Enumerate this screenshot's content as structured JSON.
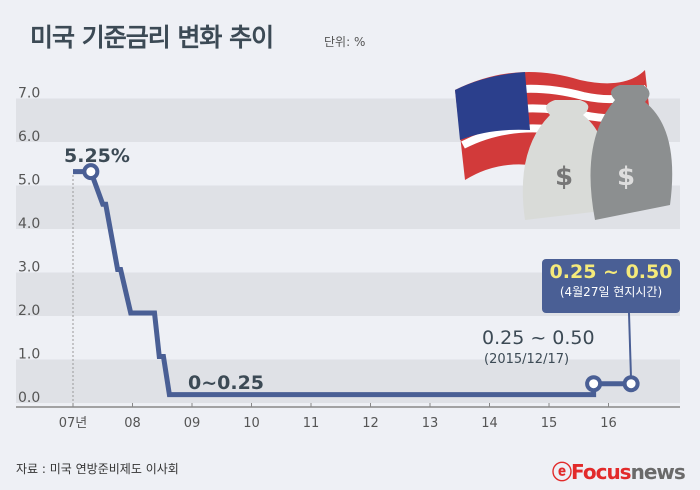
{
  "header": {
    "title": "미국 기준금리 변화 추이",
    "unit": "단위: %"
  },
  "footer": {
    "source": "자료 : 미국 연방준비제도 이사회",
    "logo": "Focusnews"
  },
  "chart_data": {
    "type": "line",
    "title": "미국 기준금리 변화 추이",
    "ylabel": "",
    "xlabel": "",
    "ylim": [
      0,
      7
    ],
    "yticks": [
      "0.0",
      "1.0",
      "2.0",
      "3.0",
      "4.0",
      "5.0",
      "6.0",
      "7.0"
    ],
    "xticks": [
      {
        "v": 2007,
        "label": "07년"
      },
      {
        "v": 2008,
        "label": "08"
      },
      {
        "v": 2009,
        "label": "09"
      },
      {
        "v": 2010,
        "label": "10"
      },
      {
        "v": 2011,
        "label": "11"
      },
      {
        "v": 2012,
        "label": "12"
      },
      {
        "v": 2013,
        "label": "13"
      },
      {
        "v": 2014,
        "label": "14"
      },
      {
        "v": 2015,
        "label": "15"
      },
      {
        "v": 2016,
        "label": "16"
      }
    ],
    "x": [
      2007.0,
      2007.3,
      2007.5,
      2007.55,
      2007.75,
      2007.8,
      2007.97,
      2008.37,
      2008.45,
      2008.52,
      2008.62,
      2015.75,
      2015.75,
      2016.38
    ],
    "y": [
      5.25,
      5.25,
      4.5,
      4.5,
      3.0,
      3.0,
      2.0,
      2.0,
      1.0,
      1.0,
      0.125,
      0.125,
      0.375,
      0.375
    ],
    "grid": true,
    "annotations": {
      "peak": "5.25%",
      "low": "0~0.25",
      "hike1": "0.25 ~ 0.50",
      "hike1_date": "(2015/12/17)",
      "current": "0.25 ~ 0.50",
      "current_date": "(4월27일 현지시간)"
    },
    "colors": {
      "line": "#4a5f95",
      "band": "#dfe1e6",
      "accent": "#f5ea7a"
    }
  }
}
